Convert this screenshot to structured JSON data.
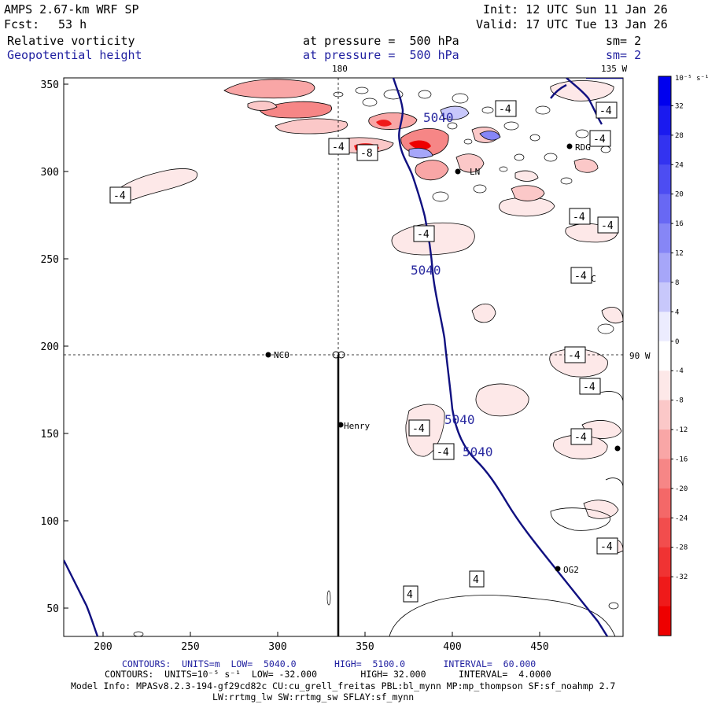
{
  "header": {
    "model": "AMPS 2.67-km WRF SP",
    "fcst_label": "Fcst:",
    "fcst_value": "53 h",
    "init": "Init: 12 UTC Sun 11 Jan 26",
    "valid": "Valid: 17 UTC Tue 13 Jan 26",
    "field1": "Relative vorticity",
    "field1_level": "at pressure =  500 hPa",
    "field1_sm": "sm= 2",
    "field2": "Geopotential height",
    "field2_level": "at pressure =  500 hPa",
    "field2_sm": "sm= 2"
  },
  "map": {
    "lon_top_left": "180",
    "lon_top_right": "135 W",
    "lon_right": "90 W",
    "y_ticks": [
      "350",
      "300",
      "250",
      "200",
      "150",
      "100",
      "50"
    ],
    "x_ticks": [
      "200",
      "250",
      "300",
      "350",
      "400",
      "450"
    ],
    "stations": [
      "NCO",
      "Henry",
      "RDG",
      "HBC",
      "OG2",
      "LN"
    ],
    "height_labels": [
      "5040",
      "5040",
      "5040",
      "5040"
    ],
    "vort_labels": [
      "-4",
      "-4",
      "-8",
      "-4",
      "-4",
      "-4",
      "-4",
      "-4",
      "-4",
      "-4",
      "-4",
      "-4",
      "-4",
      "-4",
      "-4",
      "-4",
      "4",
      "4"
    ]
  },
  "colorbar": {
    "units": "10⁻⁵ s⁻¹",
    "ticks": [
      "32",
      "28",
      "24",
      "20",
      "16",
      "12",
      "8",
      "4",
      "0",
      "-4",
      "-8",
      "-12",
      "-16",
      "-20",
      "-24",
      "-28",
      "-32"
    ],
    "colors": [
      "#0000ee",
      "#1a1aef",
      "#3333f0",
      "#4d4df2",
      "#6868f4",
      "#8686f6",
      "#a6a6f9",
      "#c8c8fb",
      "#ececfe",
      "#ffffff",
      "#fde8e8",
      "#fbc8c8",
      "#f9a6a6",
      "#f68686",
      "#f46868",
      "#f24d4d",
      "#f03333",
      "#ef1a1a",
      "#ee0000"
    ]
  },
  "footer": {
    "line1": "CONTOURS:  UNITS=m  LOW=  5040.0       HIGH=  5100.0       INTERVAL=  60.000",
    "line2": "CONTOURS:  UNITS=10⁻⁵ s⁻¹  LOW= -32.000        HIGH= 32.000      INTERVAL=  4.0000",
    "line3": "Model Info: MPASv8.2.3-194-gf29cd82c CU:cu_grell_freitas PBL:bl_mynn MP:mp_thompson SF:sf_noahmp 2.7",
    "line4": "LW:rrtmg_lw SW:rrtmg_sw SFLAY:sf_mynn"
  }
}
